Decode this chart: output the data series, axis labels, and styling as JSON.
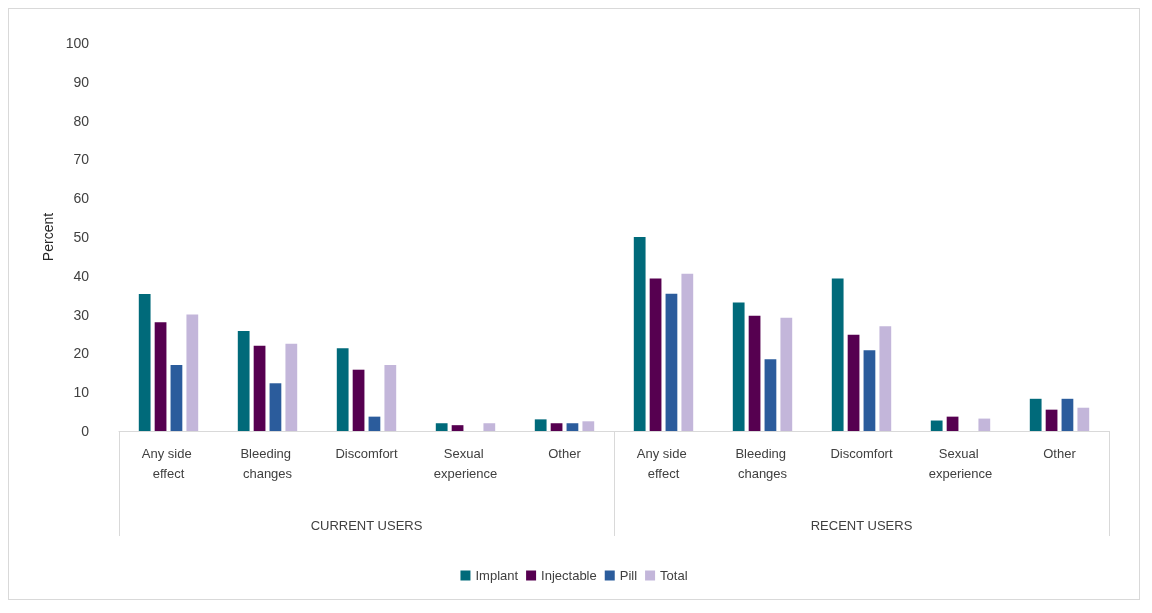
{
  "chart_data": {
    "type": "bar",
    "ylabel": "Percent",
    "categories": [
      "Any side effect",
      "Bleeding changes",
      "Discomfort",
      "Sexual experience",
      "Other",
      "Any side effect",
      "Bleeding changes",
      "Discomfort",
      "Sexual experience",
      "Other"
    ],
    "annotations": [
      "CURRENT USERS",
      "RECENT USERS"
    ],
    "series": [
      {
        "name": "Implant",
        "color": "#006a7a",
        "values": [
          35.3,
          25.8,
          21.3,
          2,
          3,
          50,
          33.1,
          39.3,
          2.7,
          8.3
        ]
      },
      {
        "name": "Injectable",
        "color": "#560050",
        "values": [
          28,
          22,
          15.8,
          1.5,
          2,
          39.3,
          29.7,
          24.8,
          3.7,
          5.5
        ]
      },
      {
        "name": "Pill",
        "color": "#2b5c9c",
        "values": [
          17,
          12.3,
          3.7,
          0,
          2,
          35.4,
          18.5,
          20.8,
          0,
          8.3
        ]
      },
      {
        "name": "Total",
        "color": "#c3b6da",
        "values": [
          30,
          22.5,
          17,
          2,
          2.5,
          40.5,
          29.2,
          27,
          3.2,
          6
        ]
      }
    ],
    "ylim": [
      0,
      100
    ],
    "yticks": [
      0,
      10,
      20,
      30,
      40,
      50,
      60,
      70,
      80,
      90,
      100
    ],
    "grid": false,
    "legend": "bottom"
  }
}
